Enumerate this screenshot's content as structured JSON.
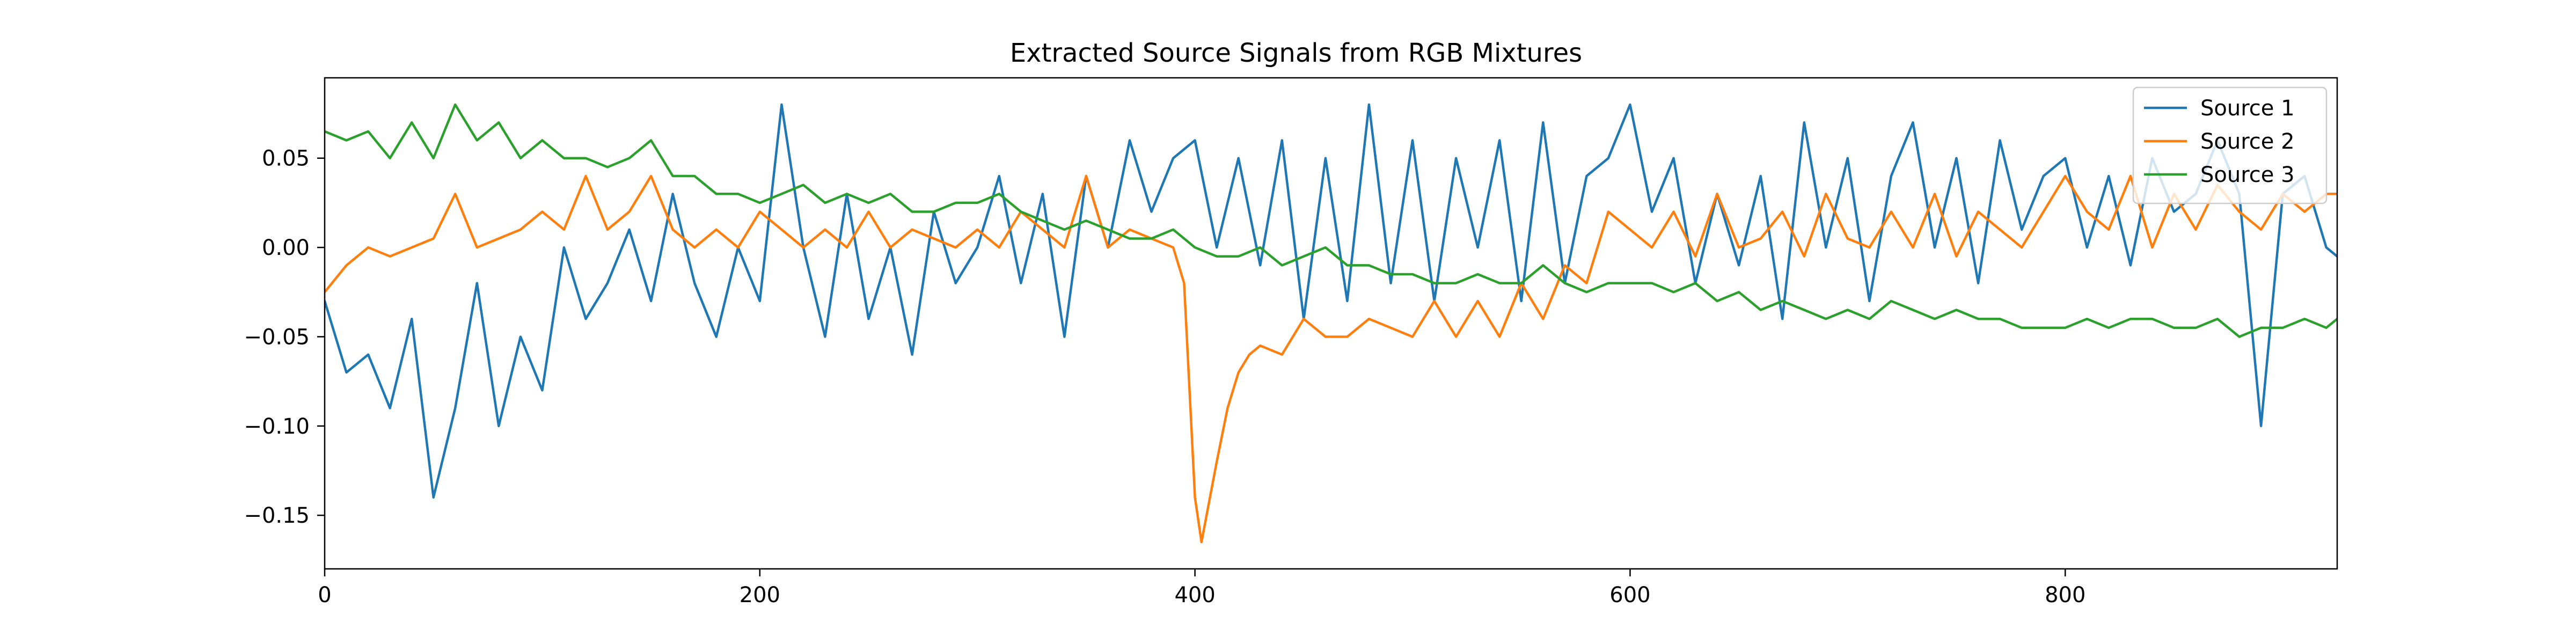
{
  "chart_data": {
    "type": "line",
    "title": "Extracted Source Signals from RGB Mixtures",
    "xlabel": "",
    "ylabel": "",
    "xlim": [
      0,
      925
    ],
    "ylim": [
      -0.18,
      0.095
    ],
    "xticks": [
      0,
      200,
      400,
      600,
      800
    ],
    "xtick_labels": [
      "0",
      "200",
      "400",
      "600",
      "800"
    ],
    "yticks": [
      0.05,
      0.0,
      -0.05,
      -0.1,
      -0.15
    ],
    "ytick_labels": [
      "0.05",
      "0.00",
      "−0.05",
      "−0.10",
      "−0.15"
    ],
    "grid": false,
    "legend_position": "top-right",
    "series": [
      {
        "name": "Source 1",
        "color": "#1f77b4",
        "x": [
          0,
          10,
          20,
          30,
          40,
          50,
          60,
          70,
          80,
          90,
          100,
          110,
          120,
          130,
          140,
          150,
          160,
          170,
          180,
          190,
          200,
          210,
          220,
          230,
          240,
          250,
          260,
          270,
          280,
          290,
          300,
          310,
          320,
          330,
          340,
          350,
          360,
          370,
          380,
          390,
          400,
          410,
          420,
          430,
          440,
          450,
          460,
          470,
          480,
          490,
          500,
          510,
          520,
          530,
          540,
          550,
          560,
          570,
          580,
          590,
          600,
          610,
          620,
          630,
          640,
          650,
          660,
          670,
          680,
          690,
          700,
          710,
          720,
          730,
          740,
          750,
          760,
          770,
          780,
          790,
          800,
          810,
          820,
          830,
          840,
          850,
          860,
          870,
          880,
          890,
          900,
          910,
          920,
          925
        ],
        "values": [
          -0.03,
          -0.07,
          -0.06,
          -0.09,
          -0.04,
          -0.14,
          -0.09,
          -0.02,
          -0.1,
          -0.05,
          -0.08,
          0.0,
          -0.04,
          -0.02,
          0.01,
          -0.03,
          0.03,
          -0.02,
          -0.05,
          0.0,
          -0.03,
          0.08,
          0.0,
          -0.05,
          0.03,
          -0.04,
          0.0,
          -0.06,
          0.02,
          -0.02,
          0.0,
          0.04,
          -0.02,
          0.03,
          -0.05,
          0.04,
          0.0,
          0.06,
          0.02,
          0.05,
          0.06,
          0.0,
          0.05,
          -0.01,
          0.06,
          -0.04,
          0.05,
          -0.03,
          0.08,
          -0.02,
          0.06,
          -0.03,
          0.05,
          0.0,
          0.06,
          -0.03,
          0.07,
          -0.02,
          0.04,
          0.05,
          0.08,
          0.02,
          0.05,
          -0.02,
          0.03,
          -0.01,
          0.04,
          -0.04,
          0.07,
          0.0,
          0.05,
          -0.03,
          0.04,
          0.07,
          0.0,
          0.05,
          -0.02,
          0.06,
          0.01,
          0.04,
          0.05,
          0.0,
          0.04,
          -0.01,
          0.05,
          0.02,
          0.03,
          0.06,
          0.03,
          -0.1,
          0.03,
          0.04,
          0.0,
          -0.005
        ]
      },
      {
        "name": "Source 2",
        "color": "#ff7f0e",
        "x": [
          0,
          10,
          20,
          30,
          40,
          50,
          60,
          70,
          80,
          90,
          100,
          110,
          120,
          130,
          140,
          150,
          160,
          170,
          180,
          190,
          200,
          210,
          220,
          230,
          240,
          250,
          260,
          270,
          280,
          290,
          300,
          310,
          320,
          330,
          340,
          350,
          360,
          370,
          380,
          390,
          395,
          400,
          403,
          410,
          415,
          420,
          425,
          430,
          440,
          450,
          460,
          470,
          480,
          490,
          500,
          510,
          520,
          530,
          540,
          550,
          560,
          570,
          580,
          590,
          600,
          610,
          620,
          630,
          640,
          650,
          660,
          670,
          680,
          690,
          700,
          710,
          720,
          730,
          740,
          750,
          760,
          770,
          780,
          790,
          800,
          810,
          820,
          830,
          840,
          850,
          860,
          870,
          880,
          890,
          900,
          910,
          920,
          925
        ],
        "values": [
          -0.025,
          -0.01,
          0.0,
          -0.005,
          0.0,
          0.005,
          0.03,
          0.0,
          0.005,
          0.01,
          0.02,
          0.01,
          0.04,
          0.01,
          0.02,
          0.04,
          0.01,
          0.0,
          0.01,
          0.0,
          0.02,
          0.01,
          0.0,
          0.01,
          0.0,
          0.02,
          0.0,
          0.01,
          0.005,
          0.0,
          0.01,
          0.0,
          0.02,
          0.01,
          0.0,
          0.04,
          0.0,
          0.01,
          0.005,
          0.0,
          -0.02,
          -0.14,
          -0.165,
          -0.12,
          -0.09,
          -0.07,
          -0.06,
          -0.055,
          -0.06,
          -0.04,
          -0.05,
          -0.05,
          -0.04,
          -0.045,
          -0.05,
          -0.03,
          -0.05,
          -0.03,
          -0.05,
          -0.02,
          -0.04,
          -0.01,
          -0.02,
          0.02,
          0.01,
          0.0,
          0.02,
          -0.005,
          0.03,
          0.0,
          0.005,
          0.02,
          -0.005,
          0.03,
          0.005,
          0.0,
          0.02,
          0.0,
          0.03,
          -0.005,
          0.02,
          0.01,
          0.0,
          0.02,
          0.04,
          0.02,
          0.01,
          0.04,
          0.0,
          0.03,
          0.01,
          0.035,
          0.02,
          0.01,
          0.03,
          0.02,
          0.03,
          0.03
        ]
      },
      {
        "name": "Source 3",
        "color": "#2ca02c",
        "x": [
          0,
          10,
          20,
          30,
          40,
          50,
          60,
          70,
          80,
          90,
          100,
          110,
          120,
          130,
          140,
          150,
          160,
          170,
          180,
          190,
          200,
          210,
          220,
          230,
          240,
          250,
          260,
          270,
          280,
          290,
          300,
          310,
          320,
          330,
          340,
          350,
          360,
          370,
          380,
          390,
          400,
          410,
          420,
          430,
          440,
          450,
          460,
          470,
          480,
          490,
          500,
          510,
          520,
          530,
          540,
          550,
          560,
          570,
          580,
          590,
          600,
          610,
          620,
          630,
          640,
          650,
          660,
          670,
          680,
          690,
          700,
          710,
          720,
          730,
          740,
          750,
          760,
          770,
          780,
          790,
          800,
          810,
          820,
          830,
          840,
          850,
          860,
          870,
          880,
          890,
          900,
          910,
          920,
          925
        ],
        "values": [
          0.065,
          0.06,
          0.065,
          0.05,
          0.07,
          0.05,
          0.08,
          0.06,
          0.07,
          0.05,
          0.06,
          0.05,
          0.05,
          0.045,
          0.05,
          0.06,
          0.04,
          0.04,
          0.03,
          0.03,
          0.025,
          0.03,
          0.035,
          0.025,
          0.03,
          0.025,
          0.03,
          0.02,
          0.02,
          0.025,
          0.025,
          0.03,
          0.02,
          0.015,
          0.01,
          0.015,
          0.01,
          0.005,
          0.005,
          0.01,
          0.0,
          -0.005,
          -0.005,
          0.0,
          -0.01,
          -0.005,
          0.0,
          -0.01,
          -0.01,
          -0.015,
          -0.015,
          -0.02,
          -0.02,
          -0.015,
          -0.02,
          -0.02,
          -0.01,
          -0.02,
          -0.025,
          -0.02,
          -0.02,
          -0.02,
          -0.025,
          -0.02,
          -0.03,
          -0.025,
          -0.035,
          -0.03,
          -0.035,
          -0.04,
          -0.035,
          -0.04,
          -0.03,
          -0.035,
          -0.04,
          -0.035,
          -0.04,
          -0.04,
          -0.045,
          -0.045,
          -0.045,
          -0.04,
          -0.045,
          -0.04,
          -0.04,
          -0.045,
          -0.045,
          -0.04,
          -0.05,
          -0.045,
          -0.045,
          -0.04,
          -0.045,
          -0.04
        ]
      }
    ]
  }
}
